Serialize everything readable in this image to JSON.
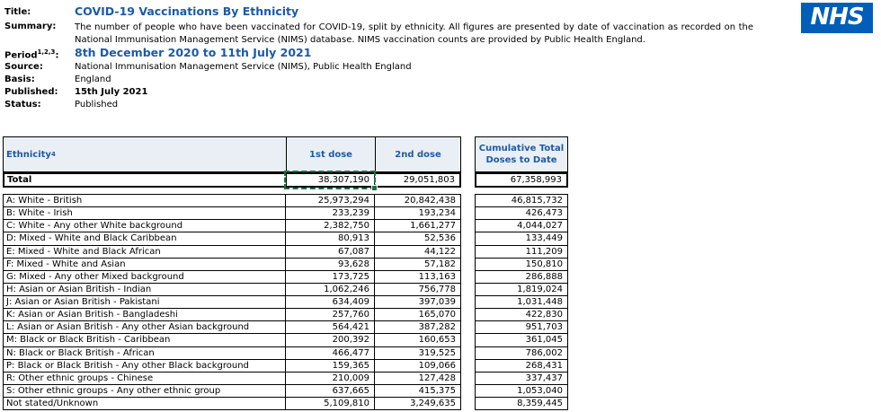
{
  "document": {
    "labels": {
      "title": "Title:",
      "summary": "Summary:",
      "period_word": "Period",
      "period_superscript": "1,2,3",
      "period_colon": ":",
      "source": "Source:",
      "basis": "Basis:",
      "published": "Published:",
      "status": "Status:"
    },
    "values": {
      "title": "COVID-19 Vaccinations By Ethnicity",
      "summary": "The number of people who have been vaccinated for COVID-19, split by ethnicity. All figures are presented by date of vaccination as recorded on the National Immunisation Management Service (NIMS) database. NIMS vaccination counts are provided by Public Health England.",
      "period": "8th December 2020 to 11th July 2021",
      "source": "National Immunisation Management Service (NIMS), Public Health England",
      "basis": "England",
      "published": "15th July 2021",
      "status": "Published"
    }
  },
  "logo": {
    "text": "NHS",
    "background": "#005EB8"
  },
  "table": {
    "header": {
      "ethnicity": "Ethnicity",
      "ethnicity_superscript": "4",
      "dose1": "1st dose",
      "dose2": "2nd dose",
      "cumulative": "Cumulative Total Doses to Date"
    },
    "total": {
      "label": "Total",
      "dose1": "38,307,190",
      "dose2": "29,051,803",
      "cumulative": "67,358,993"
    },
    "rows": [
      {
        "label": "A: White - British",
        "dose1": "25,973,294",
        "dose2": "20,842,438",
        "cumulative": "46,815,732"
      },
      {
        "label": "B: White - Irish",
        "dose1": "233,239",
        "dose2": "193,234",
        "cumulative": "426,473"
      },
      {
        "label": "C: White - Any other White background",
        "dose1": "2,382,750",
        "dose2": "1,661,277",
        "cumulative": "4,044,027"
      },
      {
        "label": "D: Mixed - White and Black Caribbean",
        "dose1": "80,913",
        "dose2": "52,536",
        "cumulative": "133,449"
      },
      {
        "label": "E: Mixed - White and Black African",
        "dose1": "67,087",
        "dose2": "44,122",
        "cumulative": "111,209"
      },
      {
        "label": "F: Mixed - White and Asian",
        "dose1": "93,628",
        "dose2": "57,182",
        "cumulative": "150,810"
      },
      {
        "label": "G: Mixed - Any other Mixed background",
        "dose1": "173,725",
        "dose2": "113,163",
        "cumulative": "286,888"
      },
      {
        "label": "H: Asian or Asian British - Indian",
        "dose1": "1,062,246",
        "dose2": "756,778",
        "cumulative": "1,819,024"
      },
      {
        "label": "J: Asian or Asian British - Pakistani",
        "dose1": "634,409",
        "dose2": "397,039",
        "cumulative": "1,031,448"
      },
      {
        "label": "K: Asian or Asian British - Bangladeshi",
        "dose1": "257,760",
        "dose2": "165,070",
        "cumulative": "422,830"
      },
      {
        "label": "L: Asian or Asian British - Any other Asian background",
        "dose1": "564,421",
        "dose2": "387,282",
        "cumulative": "951,703"
      },
      {
        "label": "M: Black or Black British - Caribbean",
        "dose1": "200,392",
        "dose2": "160,653",
        "cumulative": "361,045"
      },
      {
        "label": "N: Black or Black British - African",
        "dose1": "466,477",
        "dose2": "319,525",
        "cumulative": "786,002"
      },
      {
        "label": "P: Black or Black British - Any other Black background",
        "dose1": "159,365",
        "dose2": "109,066",
        "cumulative": "268,431"
      },
      {
        "label": "R: Other ethnic groups - Chinese",
        "dose1": "210,009",
        "dose2": "127,428",
        "cumulative": "337,437"
      },
      {
        "label": "S: Other ethnic groups - Any other ethnic group",
        "dose1": "637,665",
        "dose2": "415,375",
        "cumulative": "1,053,040"
      },
      {
        "label": "Not stated/Unknown",
        "dose1": "5,109,810",
        "dose2": "3,249,635",
        "cumulative": "8,359,445"
      }
    ]
  },
  "colors": {
    "heading_blue": "#1C5AA8",
    "header_fill": "#EAEFF5",
    "selection_green": "#1E7145",
    "nhs_blue": "#005EB8",
    "border": "#000000"
  }
}
